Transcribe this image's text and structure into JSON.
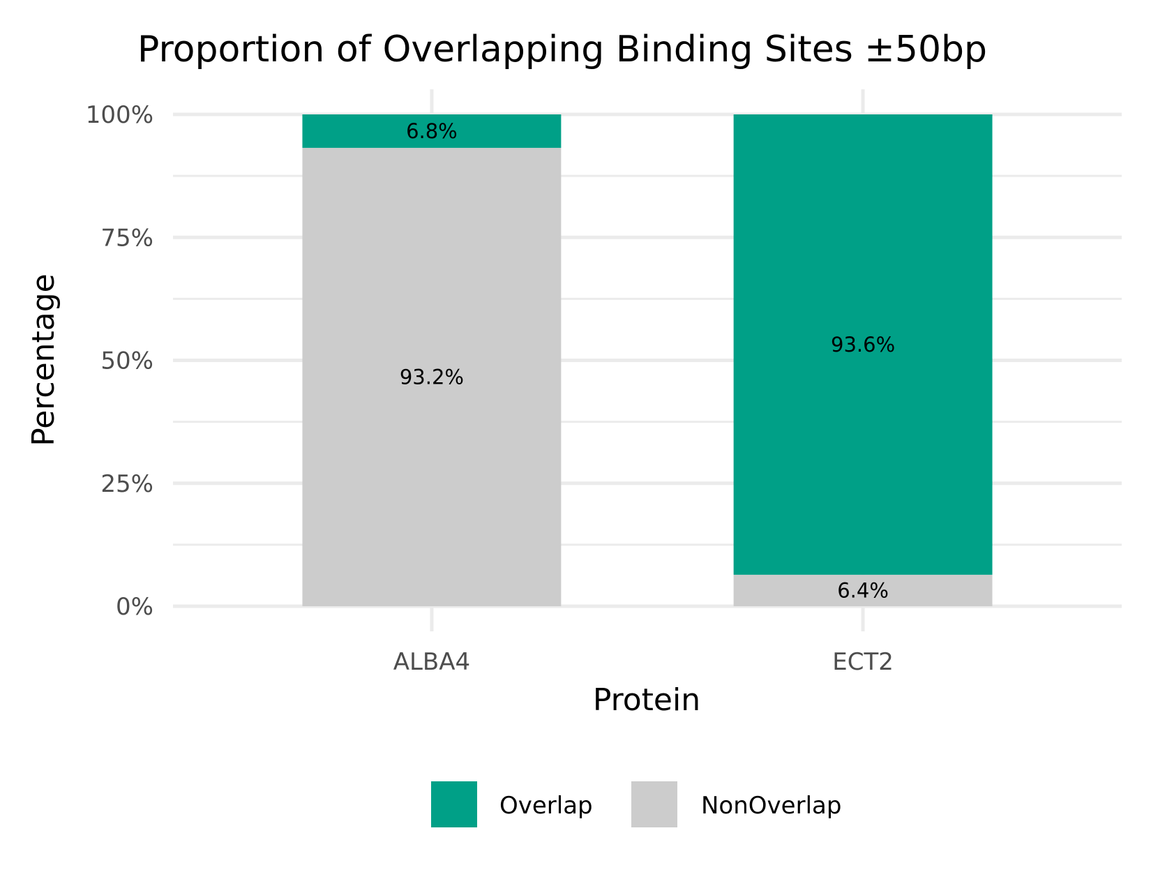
{
  "chart_data": {
    "type": "bar",
    "stacked": true,
    "title": "Proportion of Overlapping Binding Sites ±50bp",
    "xlabel": "Protein",
    "ylabel": "Percentage",
    "categories": [
      "ALBA4",
      "ECT2"
    ],
    "series": [
      {
        "name": "Overlap",
        "color": "#00A087",
        "values": [
          6.8,
          93.6
        ],
        "labels": [
          "6.8%",
          "93.6%"
        ]
      },
      {
        "name": "NonOverlap",
        "color": "#CCCCCC",
        "values": [
          93.2,
          6.4
        ],
        "labels": [
          "93.2%",
          "6.4%"
        ]
      }
    ],
    "stack_order_bottom_to_top": [
      "NonOverlap",
      "Overlap"
    ],
    "ylim": [
      0,
      100
    ],
    "yticks": [
      0,
      25,
      50,
      75,
      100
    ],
    "ytick_labels": [
      "0%",
      "25%",
      "50%",
      "75%",
      "100%"
    ],
    "grid": true,
    "legend_position": "bottom",
    "legend": [
      "Overlap",
      "NonOverlap"
    ]
  }
}
